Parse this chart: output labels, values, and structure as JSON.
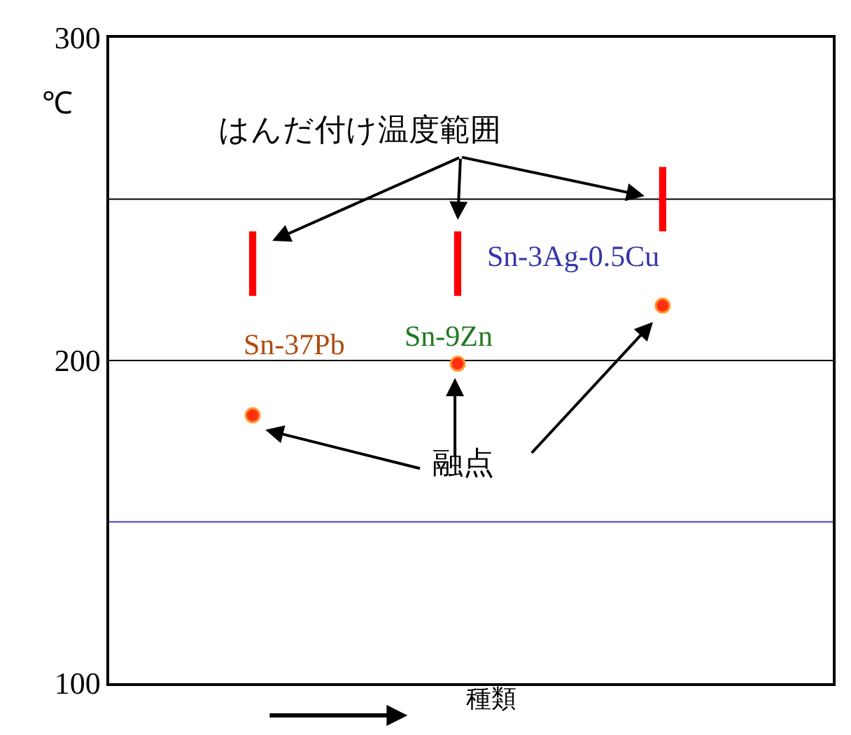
{
  "chart_data": {
    "type": "scatter",
    "categories": [
      "Sn-37Pb",
      "Sn-9Zn",
      "Sn-3Ag-0.5Cu"
    ],
    "ylabel": "℃",
    "xlabel": "種類",
    "annotations": [
      "はんだ付け温度範囲",
      "融点"
    ],
    "series": [
      {
        "type": "bar",
        "color": "#ff0000",
        "base": [
          220,
          220,
          240
        ],
        "values": [
          20,
          20,
          20
        ]
      },
      {
        "color": "#ff3010",
        "values": [
          183,
          199,
          217
        ]
      }
    ],
    "ylim": [
      100,
      300
    ],
    "yticks": [
      100,
      200,
      300
    ],
    "ref_lines": [
      {
        "axis": "y",
        "value": 250,
        "color": "#000000"
      },
      {
        "axis": "y",
        "value": 200,
        "color": "#000000"
      },
      {
        "axis": "y",
        "value": 150,
        "color": "#4040c0"
      }
    ],
    "grid": false,
    "marker": "circle"
  }
}
